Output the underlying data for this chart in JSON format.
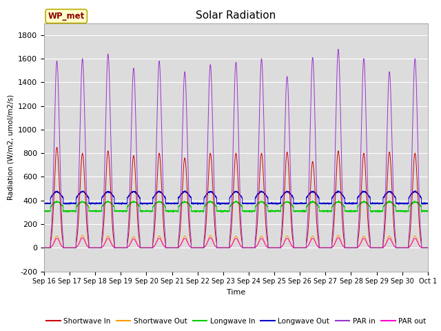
{
  "title": "Solar Radiation",
  "ylabel": "Radiation (W/m2, umol/m2/s)",
  "xlabel": "Time",
  "ylim": [
    -200,
    1900
  ],
  "yticks": [
    -200,
    0,
    200,
    400,
    600,
    800,
    1000,
    1200,
    1400,
    1600,
    1800
  ],
  "xtick_labels": [
    "Sep 16",
    "Sep 17",
    "Sep 18",
    "Sep 19",
    "Sep 20",
    "Sep 21",
    "Sep 22",
    "Sep 23",
    "Sep 24",
    "Sep 25",
    "Sep 26",
    "Sep 27",
    "Sep 28",
    "Sep 29",
    "Sep 30",
    "Oct 1"
  ],
  "station_label": "WP_met",
  "colors": {
    "shortwave_in": "#cc0000",
    "shortwave_out": "#ff9900",
    "longwave_in": "#00cc00",
    "longwave_out": "#0000cc",
    "par_in": "#9933cc",
    "par_out": "#ff00cc"
  },
  "background_color": "#dcdcdc",
  "legend_items": [
    "Shortwave In",
    "Shortwave Out",
    "Longwave In",
    "Longwave Out",
    "PAR in",
    "PAR out"
  ]
}
